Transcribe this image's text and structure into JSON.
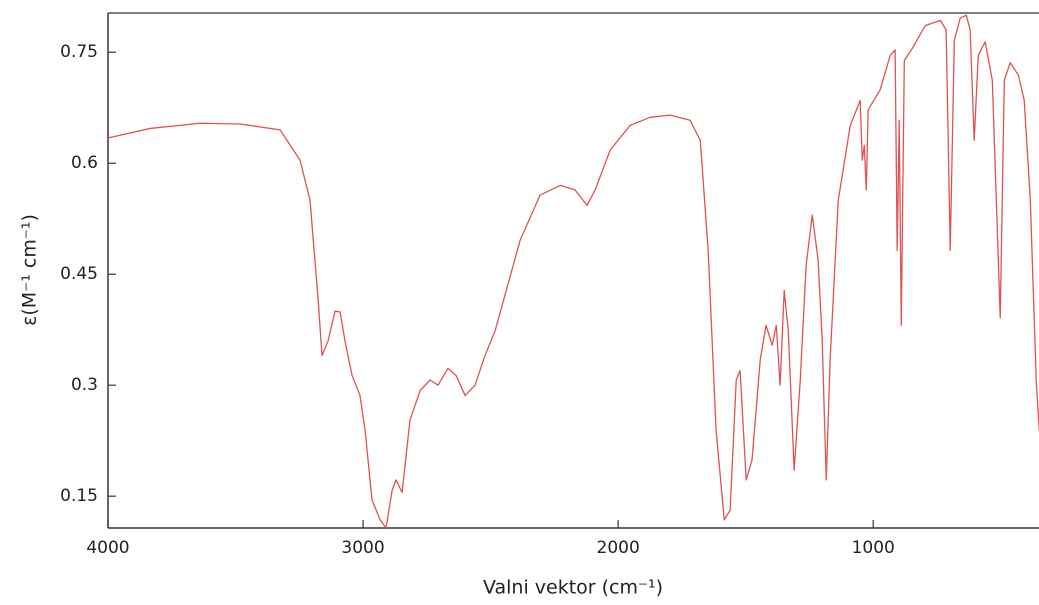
{
  "chart_data": {
    "type": "line",
    "xlabel": "Valni vektor (cm⁻¹)",
    "ylabel": "ε(M⁻¹ cm⁻¹)",
    "color": "#e05252",
    "xlim": [
      4000,
      350
    ],
    "xticks": [
      4000,
      3000,
      2000,
      1000
    ],
    "ylim": [
      0.107,
      0.803
    ],
    "yticks": [
      0.15,
      0.3,
      0.45,
      0.6,
      0.75
    ],
    "x": [
      4000,
      3835,
      3639,
      3482,
      3325,
      3247,
      3208,
      3176,
      3161,
      3137,
      3110,
      3090,
      3071,
      3043,
      3012,
      2992,
      2965,
      2933,
      2910,
      2886,
      2871,
      2847,
      2816,
      2776,
      2737,
      2706,
      2667,
      2635,
      2600,
      2561,
      2522,
      2482,
      2384,
      2306,
      2227,
      2169,
      2122,
      2090,
      2031,
      1953,
      1875,
      1796,
      1718,
      1678,
      1647,
      1616,
      1584,
      1561,
      1537,
      1522,
      1498,
      1475,
      1443,
      1420,
      1396,
      1380,
      1365,
      1349,
      1333,
      1310,
      1286,
      1263,
      1239,
      1216,
      1200,
      1184,
      1169,
      1137,
      1090,
      1051,
      1043,
      1035,
      1027,
      1020,
      973,
      933,
      914,
      906,
      898,
      890,
      878,
      847,
      796,
      737,
      714,
      698,
      682,
      659,
      635,
      620,
      604,
      588,
      561,
      533,
      502,
      486,
      463,
      431,
      408,
      384,
      361,
      349
    ],
    "values": [
      0.634,
      0.647,
      0.654,
      0.653,
      0.645,
      0.604,
      0.55,
      0.415,
      0.34,
      0.36,
      0.4,
      0.399,
      0.36,
      0.313,
      0.286,
      0.239,
      0.145,
      0.118,
      0.107,
      0.158,
      0.172,
      0.155,
      0.253,
      0.293,
      0.307,
      0.3,
      0.323,
      0.313,
      0.286,
      0.3,
      0.34,
      0.374,
      0.496,
      0.557,
      0.57,
      0.564,
      0.543,
      0.564,
      0.618,
      0.651,
      0.662,
      0.665,
      0.658,
      0.631,
      0.482,
      0.239,
      0.118,
      0.131,
      0.307,
      0.32,
      0.172,
      0.199,
      0.334,
      0.381,
      0.354,
      0.381,
      0.3,
      0.428,
      0.374,
      0.185,
      0.307,
      0.462,
      0.53,
      0.469,
      0.361,
      0.172,
      0.334,
      0.55,
      0.651,
      0.685,
      0.604,
      0.624,
      0.564,
      0.672,
      0.699,
      0.746,
      0.753,
      0.482,
      0.658,
      0.381,
      0.739,
      0.755,
      0.786,
      0.793,
      0.78,
      0.482,
      0.766,
      0.796,
      0.8,
      0.78,
      0.631,
      0.746,
      0.764,
      0.712,
      0.391,
      0.712,
      0.736,
      0.719,
      0.685,
      0.55,
      0.307,
      0.239
    ]
  }
}
